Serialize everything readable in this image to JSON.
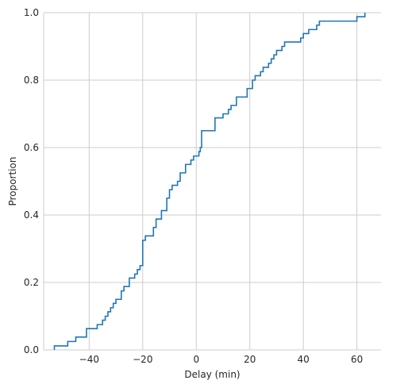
{
  "chart_data": {
    "type": "line",
    "subtype": "ecdf-step",
    "title": "",
    "xlabel": "Delay (min)",
    "ylabel": "Proportion",
    "xlim": [
      -57,
      69
    ],
    "ylim": [
      0,
      1.0
    ],
    "x_ticks": [
      -40,
      -20,
      0,
      20,
      40,
      60
    ],
    "x_tick_labels": [
      "−40",
      "−20",
      "0",
      "20",
      "40",
      "60"
    ],
    "y_ticks": [
      0,
      0.2,
      0.4,
      0.6,
      0.8,
      1.0
    ],
    "y_tick_labels": [
      "0.0",
      "0.2",
      "0.4",
      "0.6",
      "0.8",
      "1.0"
    ],
    "grid": true,
    "legend": "none",
    "color": "#1f77b4",
    "series": [
      {
        "x_start": -53,
        "steps": [
          [
            -53,
            0.012
          ],
          [
            -48,
            0.025
          ],
          [
            -45,
            0.038
          ],
          [
            -41,
            0.063
          ],
          [
            -37,
            0.075
          ],
          [
            -35,
            0.088
          ],
          [
            -34,
            0.1
          ],
          [
            -33,
            0.113
          ],
          [
            -32,
            0.125
          ],
          [
            -31,
            0.138
          ],
          [
            -30,
            0.15
          ],
          [
            -28,
            0.175
          ],
          [
            -27,
            0.188
          ],
          [
            -25,
            0.213
          ],
          [
            -23,
            0.225
          ],
          [
            -22,
            0.238
          ],
          [
            -21,
            0.25
          ],
          [
            -20,
            0.325
          ],
          [
            -19,
            0.338
          ],
          [
            -16,
            0.363
          ],
          [
            -15,
            0.388
          ],
          [
            -13,
            0.413
          ],
          [
            -11,
            0.45
          ],
          [
            -10,
            0.475
          ],
          [
            -9,
            0.488
          ],
          [
            -7,
            0.5
          ],
          [
            -6,
            0.525
          ],
          [
            -4,
            0.55
          ],
          [
            -2,
            0.563
          ],
          [
            -1,
            0.575
          ],
          [
            1,
            0.588
          ],
          [
            1.5,
            0.6
          ],
          [
            2,
            0.65
          ],
          [
            7,
            0.688
          ],
          [
            10,
            0.7
          ],
          [
            12,
            0.713
          ],
          [
            13,
            0.725
          ],
          [
            15,
            0.75
          ],
          [
            19,
            0.775
          ],
          [
            21,
            0.8
          ],
          [
            22,
            0.813
          ],
          [
            24,
            0.825
          ],
          [
            25,
            0.838
          ],
          [
            27,
            0.85
          ],
          [
            28,
            0.863
          ],
          [
            29,
            0.875
          ],
          [
            30,
            0.888
          ],
          [
            32,
            0.9
          ],
          [
            33,
            0.913
          ],
          [
            39,
            0.925
          ],
          [
            40,
            0.938
          ],
          [
            42,
            0.95
          ],
          [
            45,
            0.963
          ],
          [
            46,
            0.975
          ],
          [
            60,
            0.988
          ],
          [
            63,
            1.0
          ]
        ]
      }
    ]
  }
}
